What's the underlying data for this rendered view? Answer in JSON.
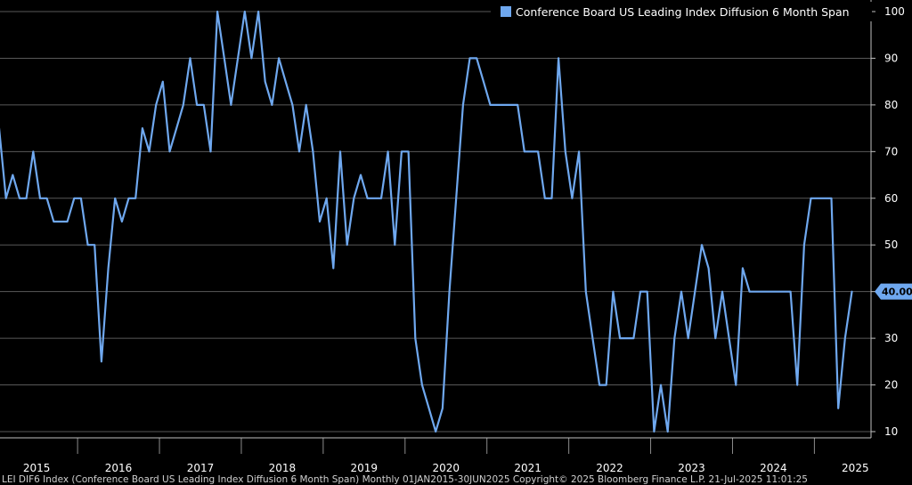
{
  "chart_data": {
    "type": "line",
    "title": "",
    "xlabel": "",
    "ylabel": "",
    "ylim": [
      10,
      100
    ],
    "y_ticks": [
      10,
      20,
      30,
      40,
      50,
      60,
      70,
      80,
      90,
      100
    ],
    "x_year_labels": [
      "2015",
      "2016",
      "2017",
      "2018",
      "2019",
      "2020",
      "2021",
      "2022",
      "2023",
      "2024",
      "2025"
    ],
    "grid": true,
    "legend_position": "top-right",
    "series": [
      {
        "name": "Conference Board US Leading Index Diffusion 6 Month Span",
        "color": "#6fa8ef",
        "x": [
          "2015-01",
          "2015-02",
          "2015-03",
          "2015-04",
          "2015-05",
          "2015-06",
          "2015-07",
          "2015-08",
          "2015-09",
          "2015-10",
          "2015-11",
          "2015-12",
          "2016-01",
          "2016-02",
          "2016-03",
          "2016-04",
          "2016-05",
          "2016-06",
          "2016-07",
          "2016-08",
          "2016-09",
          "2016-10",
          "2016-11",
          "2016-12",
          "2017-01",
          "2017-02",
          "2017-03",
          "2017-04",
          "2017-05",
          "2017-06",
          "2017-07",
          "2017-08",
          "2017-09",
          "2017-10",
          "2017-11",
          "2017-12",
          "2018-01",
          "2018-02",
          "2018-03",
          "2018-04",
          "2018-05",
          "2018-06",
          "2018-07",
          "2018-08",
          "2018-09",
          "2018-10",
          "2018-11",
          "2018-12",
          "2019-01",
          "2019-02",
          "2019-03",
          "2019-04",
          "2019-05",
          "2019-06",
          "2019-07",
          "2019-08",
          "2019-09",
          "2019-10",
          "2019-11",
          "2019-12",
          "2020-01",
          "2020-02",
          "2020-03",
          "2020-04",
          "2020-05",
          "2020-06",
          "2020-07",
          "2020-08",
          "2020-09",
          "2020-10",
          "2020-11",
          "2020-12",
          "2021-01",
          "2021-02",
          "2021-03",
          "2021-04",
          "2021-05",
          "2021-06",
          "2021-07",
          "2021-08",
          "2021-09",
          "2021-10",
          "2021-11",
          "2021-12",
          "2022-01",
          "2022-02",
          "2022-03",
          "2022-04",
          "2022-05",
          "2022-06",
          "2022-07",
          "2022-08",
          "2022-09",
          "2022-10",
          "2022-11",
          "2022-12",
          "2023-01",
          "2023-02",
          "2023-03",
          "2023-04",
          "2023-05",
          "2023-06",
          "2023-07",
          "2023-08",
          "2023-09",
          "2023-10",
          "2023-11",
          "2023-12",
          "2024-01",
          "2024-02",
          "2024-03",
          "2024-04",
          "2024-05",
          "2024-06",
          "2024-07",
          "2024-08",
          "2024-09",
          "2024-10",
          "2024-11",
          "2024-12",
          "2025-01",
          "2025-02",
          "2025-03",
          "2025-04",
          "2025-05",
          "2025-06"
        ],
        "values": [
          75,
          60,
          65,
          60,
          60,
          70,
          60,
          60,
          55,
          55,
          55,
          60,
          60,
          50,
          50,
          25,
          45,
          60,
          55,
          60,
          60,
          75,
          70,
          80,
          85,
          70,
          75,
          80,
          90,
          80,
          80,
          70,
          100,
          90,
          80,
          90,
          100,
          90,
          100,
          85,
          80,
          90,
          85,
          80,
          70,
          80,
          70,
          55,
          60,
          45,
          70,
          50,
          60,
          65,
          60,
          60,
          60,
          70,
          50,
          70,
          70,
          30,
          20,
          15,
          10,
          15,
          40,
          60,
          80,
          90,
          90,
          85,
          80,
          80,
          80,
          80,
          80,
          70,
          70,
          70,
          60,
          60,
          90,
          70,
          60,
          70,
          40,
          30,
          20,
          20,
          40,
          30,
          30,
          30,
          40,
          40,
          10,
          20,
          10,
          30,
          40,
          30,
          40,
          50,
          45,
          30,
          40,
          30,
          20,
          45,
          40,
          40,
          40,
          40,
          40,
          40,
          40,
          20,
          50,
          60,
          60,
          60,
          60,
          15,
          30,
          40
        ]
      }
    ],
    "last_value_label": "40.00"
  },
  "footer": {
    "text": "LEI DIF6 Index (Conference Board US Leading Index Diffusion 6 Month Span)  Monthly 01JAN2015-30JUN2025        Copyright© 2025 Bloomberg Finance L.P.        21-Jul-2025 11:01:25"
  }
}
